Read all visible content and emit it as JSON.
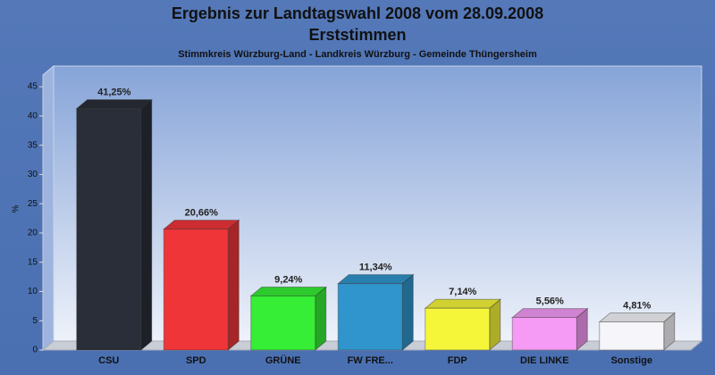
{
  "chart_data": {
    "type": "bar3d",
    "title": "Ergebnis zur Landtagswahl 2008 vom 28.09.2008",
    "title_line2": "Erststimmen",
    "subtitle": "Stimmkreis Würzburg-Land - Landkreis Würzburg - Gemeinde Thüngersheim",
    "y_label": "%",
    "categories": [
      "CSU",
      "SPD",
      "GRÜNE",
      "FW FRE...",
      "FDP",
      "DIE LINKE",
      "Sonstige"
    ],
    "values": [
      41.25,
      20.66,
      9.24,
      11.34,
      7.14,
      5.56,
      4.81
    ],
    "value_labels": [
      "41,25%",
      "20,66%",
      "9,24%",
      "11,34%",
      "7,14%",
      "5,56%",
      "4,81%"
    ],
    "colors": [
      "#2a2e38",
      "#f03538",
      "#35ee35",
      "#2f95cc",
      "#f5f53a",
      "#f59af5",
      "#f6f6fa"
    ],
    "ylim": [
      0,
      47
    ],
    "yticks": [
      0,
      5,
      10,
      15,
      20,
      25,
      30,
      35,
      40,
      45
    ],
    "grid": false
  }
}
